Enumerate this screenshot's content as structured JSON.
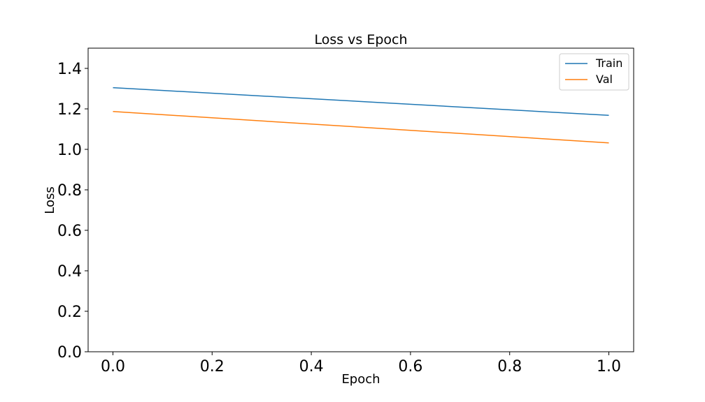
{
  "chart_data": {
    "type": "line",
    "title": "Loss vs Epoch",
    "xlabel": "Epoch",
    "ylabel": "Loss",
    "xlim": [
      -0.05,
      1.05
    ],
    "ylim": [
      0.0,
      1.5
    ],
    "xticks": [
      "0.0",
      "0.2",
      "0.4",
      "0.6",
      "0.8",
      "1.0"
    ],
    "yticks": [
      "0.0",
      "0.2",
      "0.4",
      "0.6",
      "0.8",
      "1.0",
      "1.2",
      "1.4"
    ],
    "x": [
      0.0,
      1.0
    ],
    "series": [
      {
        "name": "Train",
        "color": "#1f77b4",
        "values": [
          1.305,
          1.168
        ]
      },
      {
        "name": "Val",
        "color": "#ff7f0e",
        "values": [
          1.187,
          1.032
        ]
      }
    ],
    "grid": false,
    "legend": "top-right"
  }
}
